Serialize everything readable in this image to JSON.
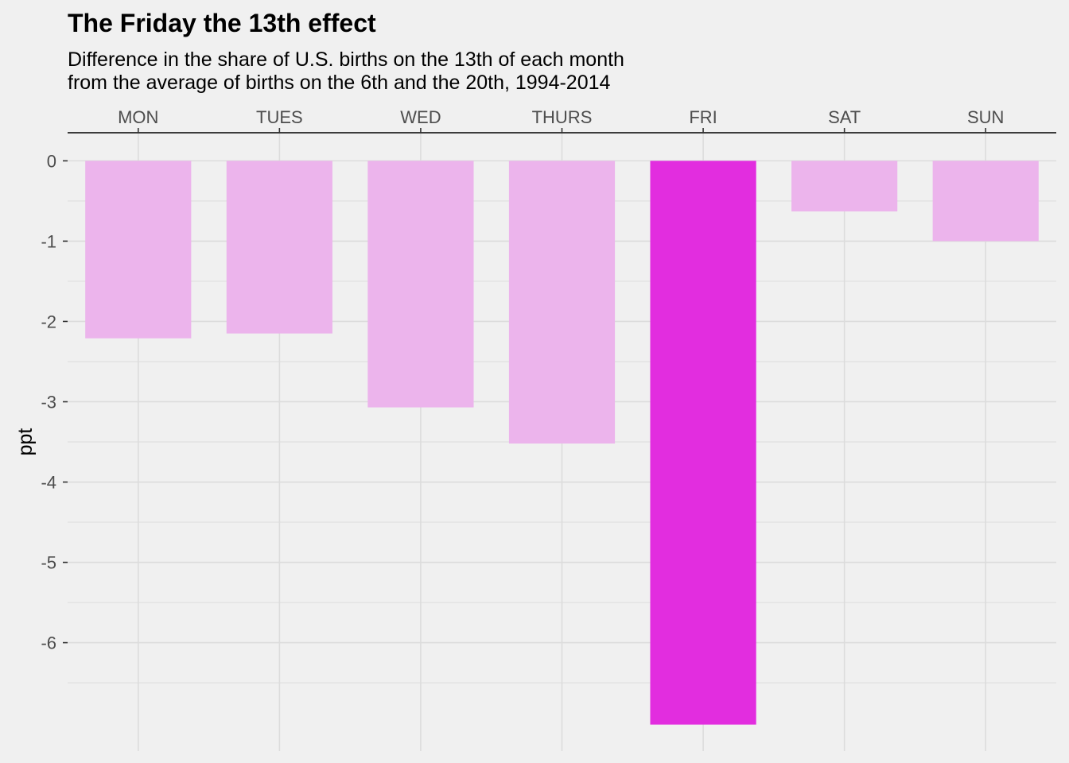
{
  "chart_data": {
    "type": "bar",
    "title": "The Friday the 13th effect",
    "subtitle": [
      "Difference in the share of U.S. births on the 13th of each month",
      "from the average of births on the 6th and the 20th, 1994-2014"
    ],
    "xlabel": "",
    "ylabel": "ppt",
    "x_axis_position": "top",
    "categories": [
      "MON",
      "TUES",
      "WED",
      "THURS",
      "FRI",
      "SAT",
      "SUN"
    ],
    "values": [
      -2.21,
      -2.15,
      -3.07,
      -3.52,
      -7.02,
      -0.63,
      -1.0
    ],
    "highlight": "FRI",
    "yticks": [
      0,
      -1,
      -2,
      -3,
      -4,
      -5,
      -6
    ],
    "ylim": [
      -7.35,
      0.35
    ],
    "grid": true,
    "colors": {
      "bar": "#ecb4ec",
      "highlight": "#e22ddf",
      "background": "#f0f0f0",
      "grid": "#dcdcdc"
    }
  }
}
